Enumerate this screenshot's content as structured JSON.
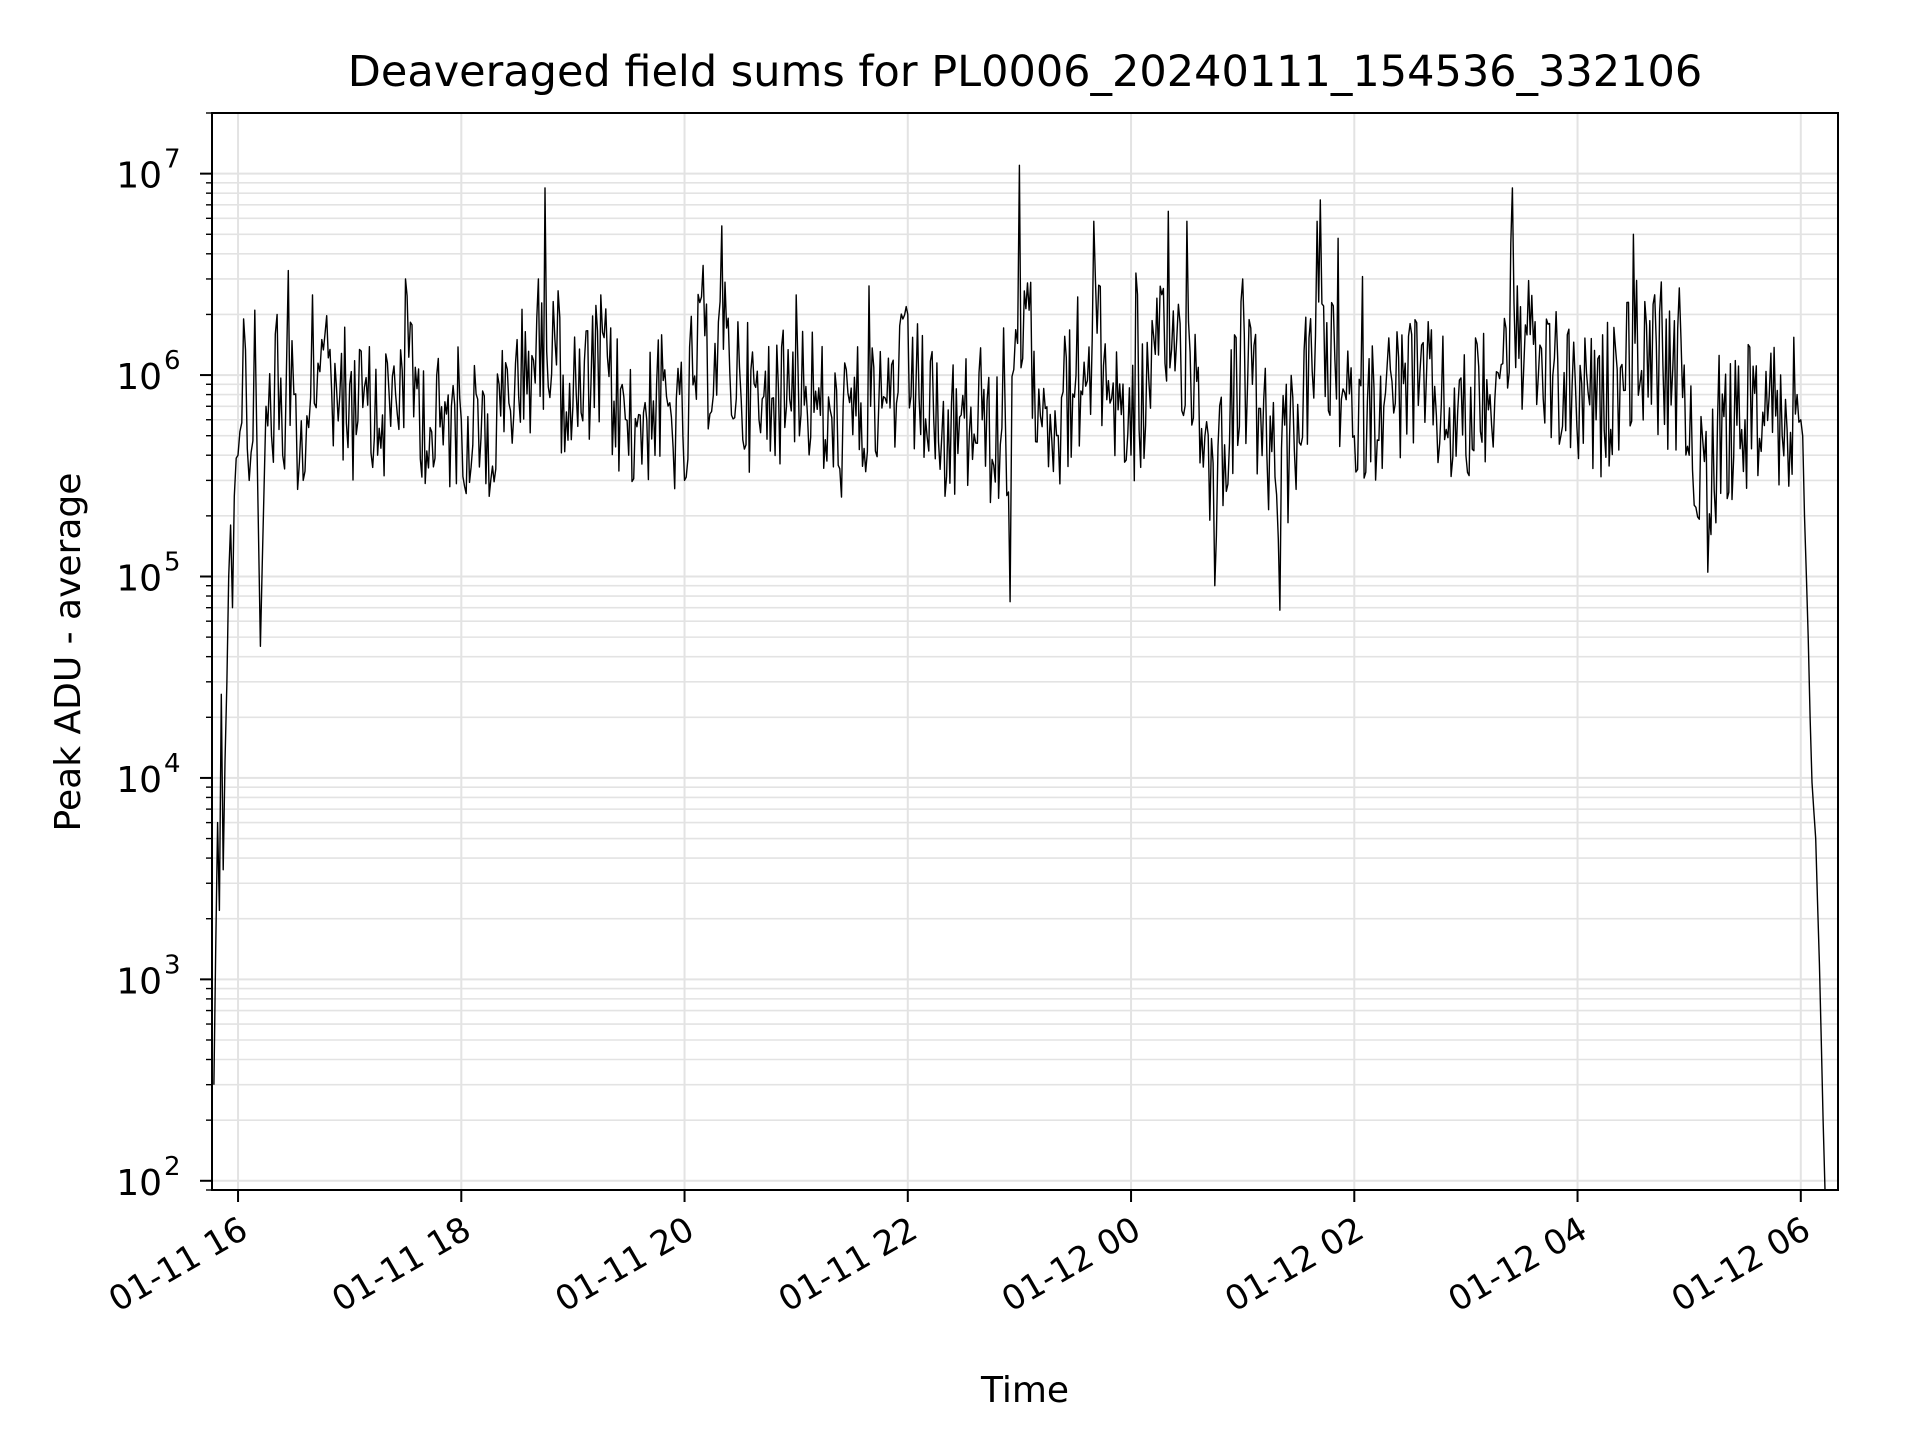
{
  "chart_data": {
    "type": "line",
    "title": "Deaveraged field sums for PL0006_20240111_154536_332106",
    "xlabel": "Time",
    "ylabel": "Peak ADU - average",
    "yscale": "log",
    "ylim": [
      90,
      20000000
    ],
    "xlim": [
      "2024-01-11 15:46",
      "2024-01-12 06:20"
    ],
    "grid": true,
    "line_color": "#000000",
    "x_ticks": [
      {
        "label": "01-11 16",
        "t": "2024-01-11 16:00"
      },
      {
        "label": "01-11 18",
        "t": "2024-01-11 18:00"
      },
      {
        "label": "01-11 20",
        "t": "2024-01-11 20:00"
      },
      {
        "label": "01-11 22",
        "t": "2024-01-11 22:00"
      },
      {
        "label": "01-12 00",
        "t": "2024-01-12 00:00"
      },
      {
        "label": "01-12 02",
        "t": "2024-01-12 02:00"
      },
      {
        "label": "01-12 04",
        "t": "2024-01-12 04:00"
      },
      {
        "label": "01-12 06",
        "t": "2024-01-12 06:00"
      }
    ],
    "y_ticks": [
      {
        "base": "10",
        "exp": "2",
        "value": 100
      },
      {
        "base": "10",
        "exp": "3",
        "value": 1000
      },
      {
        "base": "10",
        "exp": "4",
        "value": 10000
      },
      {
        "base": "10",
        "exp": "5",
        "value": 100000
      },
      {
        "base": "10",
        "exp": "6",
        "value": 1000000
      },
      {
        "base": "10",
        "exp": "7",
        "value": 10000000
      }
    ],
    "series": [
      {
        "values": [
          [
            "2024-01-11 15:47",
            300
          ],
          [
            "2024-01-11 15:48",
            1400
          ],
          [
            "2024-01-11 15:49",
            6000
          ],
          [
            "2024-01-11 15:50",
            2200
          ],
          [
            "2024-01-11 15:51",
            26000
          ],
          [
            "2024-01-11 15:52",
            3500
          ],
          [
            "2024-01-11 15:53",
            12000
          ],
          [
            "2024-01-11 15:54",
            30000
          ],
          [
            "2024-01-11 15:55",
            100000
          ],
          [
            "2024-01-11 15:56",
            180000
          ],
          [
            "2024-01-11 15:57",
            70000
          ],
          [
            "2024-01-11 15:58",
            250000
          ],
          [
            "2024-01-11 16:00",
            400000
          ],
          [
            "2024-01-11 16:03",
            1900000
          ],
          [
            "2024-01-11 16:06",
            300000
          ],
          [
            "2024-01-11 16:09",
            2100000
          ],
          [
            "2024-01-11 16:12",
            45000
          ],
          [
            "2024-01-11 16:15",
            700000
          ],
          [
            "2024-01-11 16:18",
            500000
          ],
          [
            "2024-01-11 16:21",
            2000000
          ],
          [
            "2024-01-11 16:24",
            400000
          ],
          [
            "2024-01-11 16:27",
            3300000
          ],
          [
            "2024-01-11 16:30",
            800000
          ],
          [
            "2024-01-11 16:35",
            300000
          ],
          [
            "2024-01-11 16:40",
            2500000
          ],
          [
            "2024-01-11 16:45",
            1500000
          ],
          [
            "2024-01-11 17:00",
            900000
          ],
          [
            "2024-01-11 17:15",
            400000
          ],
          [
            "2024-01-11 17:30",
            3000000
          ],
          [
            "2024-01-11 17:45",
            350000
          ],
          [
            "2024-01-11 18:00",
            600000
          ],
          [
            "2024-01-11 18:15",
            250000
          ],
          [
            "2024-01-11 18:30",
            1500000
          ],
          [
            "2024-01-11 18:45",
            8500000
          ],
          [
            "2024-01-11 19:00",
            700000
          ],
          [
            "2024-01-11 19:15",
            2500000
          ],
          [
            "2024-01-11 19:30",
            400000
          ],
          [
            "2024-01-11 19:45",
            900000
          ],
          [
            "2024-01-11 20:00",
            300000
          ],
          [
            "2024-01-11 20:10",
            3500000
          ],
          [
            "2024-01-11 20:20",
            5500000
          ],
          [
            "2024-01-11 20:40",
            600000
          ],
          [
            "2024-01-11 21:00",
            2500000
          ],
          [
            "2024-01-11 21:20",
            350000
          ],
          [
            "2024-01-11 21:40",
            700000
          ],
          [
            "2024-01-11 22:00",
            2000000
          ],
          [
            "2024-01-11 22:20",
            250000
          ],
          [
            "2024-01-11 22:40",
            600000
          ],
          [
            "2024-01-11 22:55",
            75000
          ],
          [
            "2024-01-11 23:00",
            11000000
          ],
          [
            "2024-01-11 23:20",
            500000
          ],
          [
            "2024-01-11 23:40",
            5800000
          ],
          [
            "2024-01-12 00:00",
            400000
          ],
          [
            "2024-01-12 00:20",
            6500000
          ],
          [
            "2024-01-12 00:30",
            5800000
          ],
          [
            "2024-01-12 00:45",
            90000
          ],
          [
            "2024-01-12 01:00",
            3000000
          ],
          [
            "2024-01-12 01:20",
            68000
          ],
          [
            "2024-01-12 01:40",
            5800000
          ],
          [
            "2024-01-12 02:00",
            500000
          ],
          [
            "2024-01-12 02:30",
            1800000
          ],
          [
            "2024-01-12 03:00",
            400000
          ],
          [
            "2024-01-12 03:25",
            8500000
          ],
          [
            "2024-01-12 03:45",
            1800000
          ],
          [
            "2024-01-12 04:10",
            600000
          ],
          [
            "2024-01-12 04:30",
            5000000
          ],
          [
            "2024-01-12 04:45",
            2900000
          ],
          [
            "2024-01-12 05:00",
            400000
          ],
          [
            "2024-01-12 05:10",
            105000
          ],
          [
            "2024-01-12 05:30",
            600000
          ],
          [
            "2024-01-12 05:50",
            500000
          ],
          [
            "2024-01-12 05:58",
            800000
          ],
          [
            "2024-01-12 06:00",
            600000
          ],
          [
            "2024-01-12 06:02",
            200000
          ],
          [
            "2024-01-12 06:04",
            50000
          ],
          [
            "2024-01-12 06:05",
            20000
          ],
          [
            "2024-01-12 06:06",
            9500
          ],
          [
            "2024-01-12 06:08",
            5000
          ],
          [
            "2024-01-12 06:10",
            1200
          ],
          [
            "2024-01-12 06:12",
            200
          ],
          [
            "2024-01-12 06:13",
            90
          ]
        ]
      }
    ]
  }
}
